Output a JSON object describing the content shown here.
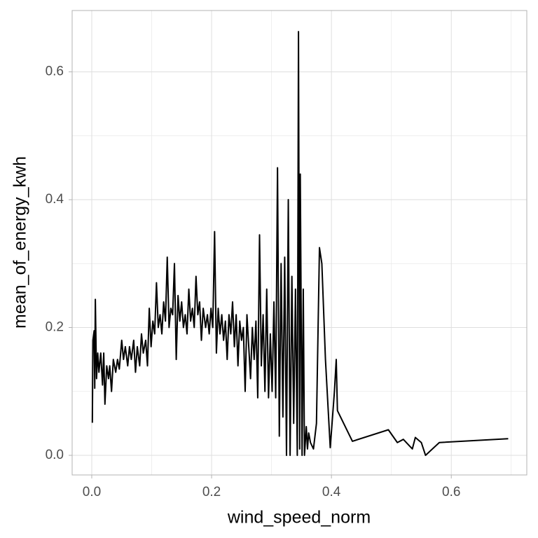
{
  "chart_data": {
    "type": "line",
    "x_label": "wind_speed_norm",
    "y_label": "mean_of_energy_kwh",
    "xlim": [
      -0.0327,
      0.726
    ],
    "ylim": [
      -0.0307,
      0.696
    ],
    "xticks": [
      {
        "value": 0,
        "label": "0.0"
      },
      0.2,
      0.4,
      0.6
    ],
    "yticks": [
      {
        "value": 0,
        "label": "0.0"
      },
      0.2,
      0.4,
      0.6
    ],
    "x_minor_grid": [
      0.1,
      0.3,
      0.5,
      0.7
    ],
    "y_minor_grid": [
      0.1,
      0.3,
      0.5
    ],
    "grid": true,
    "series": [
      {
        "color": "#000000",
        "x": [
          0.001,
          0.002,
          0.004,
          0.005,
          0.006,
          0.008,
          0.01,
          0.012,
          0.015,
          0.018,
          0.02,
          0.022,
          0.025,
          0.028,
          0.03,
          0.033,
          0.036,
          0.04,
          0.043,
          0.046,
          0.05,
          0.053,
          0.056,
          0.06,
          0.063,
          0.066,
          0.07,
          0.073,
          0.076,
          0.08,
          0.083,
          0.086,
          0.09,
          0.093,
          0.096,
          0.099,
          0.102,
          0.105,
          0.108,
          0.111,
          0.114,
          0.117,
          0.12,
          0.123,
          0.126,
          0.129,
          0.132,
          0.135,
          0.138,
          0.141,
          0.144,
          0.147,
          0.15,
          0.153,
          0.156,
          0.159,
          0.162,
          0.165,
          0.168,
          0.171,
          0.174,
          0.177,
          0.18,
          0.183,
          0.186,
          0.19,
          0.193,
          0.196,
          0.199,
          0.202,
          0.205,
          0.208,
          0.211,
          0.214,
          0.217,
          0.22,
          0.223,
          0.226,
          0.229,
          0.232,
          0.235,
          0.238,
          0.241,
          0.244,
          0.247,
          0.25,
          0.253,
          0.256,
          0.259,
          0.262,
          0.265,
          0.268,
          0.271,
          0.274,
          0.277,
          0.28,
          0.283,
          0.286,
          0.289,
          0.292,
          0.295,
          0.298,
          0.301,
          0.304,
          0.307,
          0.31,
          0.313,
          0.316,
          0.319,
          0.322,
          0.325,
          0.328,
          0.331,
          0.334,
          0.337,
          0.34,
          0.343,
          0.345,
          0.347,
          0.348,
          0.351,
          0.353,
          0.355,
          0.358,
          0.36,
          0.362,
          0.365,
          0.37,
          0.375,
          0.38,
          0.384,
          0.39,
          0.398,
          0.405,
          0.408,
          0.41,
          0.435,
          0.495,
          0.51,
          0.52,
          0.53,
          0.535,
          0.54,
          0.55,
          0.557,
          0.58,
          0.695
        ],
        "values": [
          0.051,
          0.18,
          0.195,
          0.105,
          0.244,
          0.12,
          0.16,
          0.13,
          0.16,
          0.11,
          0.16,
          0.08,
          0.14,
          0.12,
          0.14,
          0.1,
          0.15,
          0.13,
          0.15,
          0.135,
          0.18,
          0.15,
          0.17,
          0.14,
          0.17,
          0.15,
          0.18,
          0.13,
          0.17,
          0.14,
          0.19,
          0.16,
          0.18,
          0.14,
          0.23,
          0.17,
          0.21,
          0.19,
          0.27,
          0.2,
          0.22,
          0.19,
          0.24,
          0.21,
          0.31,
          0.2,
          0.23,
          0.22,
          0.3,
          0.15,
          0.25,
          0.21,
          0.24,
          0.2,
          0.22,
          0.19,
          0.26,
          0.21,
          0.23,
          0.2,
          0.28,
          0.22,
          0.24,
          0.18,
          0.23,
          0.2,
          0.22,
          0.19,
          0.23,
          0.2,
          0.35,
          0.16,
          0.23,
          0.19,
          0.22,
          0.18,
          0.21,
          0.15,
          0.22,
          0.19,
          0.24,
          0.17,
          0.22,
          0.14,
          0.21,
          0.18,
          0.2,
          0.1,
          0.22,
          0.17,
          0.12,
          0.2,
          0.15,
          0.21,
          0.09,
          0.345,
          0.14,
          0.22,
          0.1,
          0.26,
          0.09,
          0.19,
          0.1,
          0.24,
          0.09,
          0.45,
          0.03,
          0.3,
          0.06,
          0.31,
          0,
          0.4,
          0,
          0.28,
          0.05,
          0.26,
          0,
          0.663,
          0.01,
          0.44,
          0,
          0.26,
          0,
          0.045,
          0.01,
          0.035,
          0.02,
          0.01,
          0.05,
          0.325,
          0.3,
          0.15,
          0.012,
          0.1,
          0.15,
          0.07,
          0.022,
          0.04,
          0.02,
          0.025,
          0.015,
          0.01,
          0.028,
          0.02,
          0,
          0.02,
          0.026
        ]
      }
    ]
  }
}
